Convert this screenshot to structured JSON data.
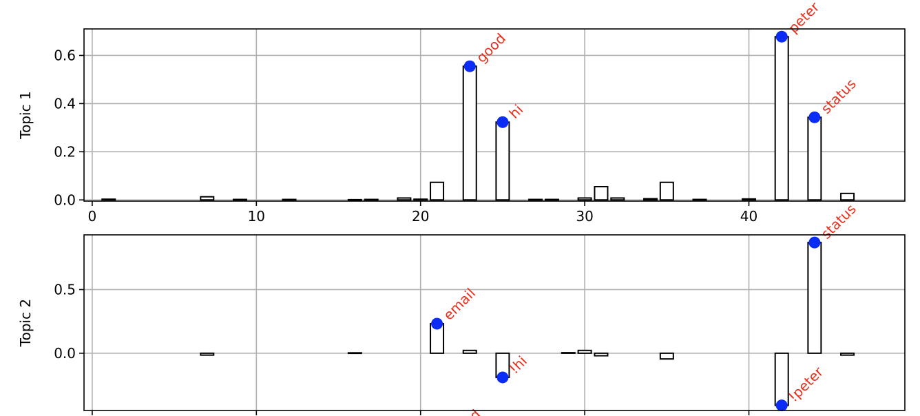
{
  "colors": {
    "bar_fill": "#ffffff",
    "bar_edge": "#000000",
    "marker": "#0b2cf5",
    "annotation": "#e8301c",
    "grid": "#b0b0b0"
  },
  "chart_data": [
    {
      "type": "bar",
      "ylabel": "Topic 1",
      "grid": true,
      "xlim": [
        -0.5,
        49.5
      ],
      "ylim": [
        -0.005,
        0.71
      ],
      "xticks": [
        0,
        10,
        20,
        30,
        40
      ],
      "yticks": [
        0.0,
        0.2,
        0.4,
        0.6
      ],
      "ytick_labels": [
        "0.0",
        "0.2",
        "0.4",
        "0.6"
      ],
      "xtick_labels": [
        "0",
        "10",
        "20",
        "30",
        "40"
      ],
      "bars": [
        {
          "x": 1,
          "value": 0.003
        },
        {
          "x": 7,
          "value": 0.013
        },
        {
          "x": 9,
          "value": 0.002
        },
        {
          "x": 12,
          "value": 0.002
        },
        {
          "x": 16,
          "value": 0.001
        },
        {
          "x": 17,
          "value": 0.002
        },
        {
          "x": 19,
          "value": 0.008
        },
        {
          "x": 20,
          "value": 0.003
        },
        {
          "x": 21,
          "value": 0.073
        },
        {
          "x": 23,
          "value": 0.555
        },
        {
          "x": 25,
          "value": 0.323
        },
        {
          "x": 27,
          "value": 0.002
        },
        {
          "x": 28,
          "value": 0.002
        },
        {
          "x": 30,
          "value": 0.008
        },
        {
          "x": 31,
          "value": 0.055
        },
        {
          "x": 32,
          "value": 0.008
        },
        {
          "x": 34,
          "value": 0.005
        },
        {
          "x": 35,
          "value": 0.073
        },
        {
          "x": 37,
          "value": 0.002
        },
        {
          "x": 40,
          "value": 0.004
        },
        {
          "x": 42,
          "value": 0.678
        },
        {
          "x": 44,
          "value": 0.343
        },
        {
          "x": 46,
          "value": 0.027
        }
      ],
      "highlights": [
        {
          "x": 23,
          "value": 0.555,
          "label": "good"
        },
        {
          "x": 25,
          "value": 0.323,
          "label": "hi"
        },
        {
          "x": 42,
          "value": 0.678,
          "label": "peter"
        },
        {
          "x": 44,
          "value": 0.343,
          "label": "status"
        }
      ]
    },
    {
      "type": "bar",
      "ylabel": "Topic 2",
      "grid": true,
      "xlim": [
        -0.5,
        49.5
      ],
      "ylim": [
        -0.45,
        0.93
      ],
      "xticks": [
        0,
        10,
        20,
        30,
        40
      ],
      "yticks": [
        0.0,
        0.5
      ],
      "ytick_labels": [
        "0.0",
        "0.5"
      ],
      "bars": [
        {
          "x": 7,
          "value": -0.015
        },
        {
          "x": 16,
          "value": 0.003
        },
        {
          "x": 21,
          "value": 0.232
        },
        {
          "x": 23,
          "value": 0.022
        },
        {
          "x": 25,
          "value": -0.19
        },
        {
          "x": 29,
          "value": 0.004
        },
        {
          "x": 30,
          "value": 0.022
        },
        {
          "x": 31,
          "value": -0.02
        },
        {
          "x": 35,
          "value": -0.045
        },
        {
          "x": 42,
          "value": -0.41
        },
        {
          "x": 44,
          "value": 0.87
        },
        {
          "x": 46,
          "value": -0.015
        }
      ],
      "highlights": [
        {
          "x": 21,
          "value": 0.232,
          "label": "email"
        },
        {
          "x": 25,
          "value": -0.19,
          "label": "!hi"
        },
        {
          "x": 42,
          "value": -0.41,
          "label": "!peter"
        },
        {
          "x": 44,
          "value": 0.87,
          "label": "status"
        }
      ],
      "cut_off_labels": [
        {
          "x": 23,
          "label": "d"
        }
      ]
    }
  ]
}
